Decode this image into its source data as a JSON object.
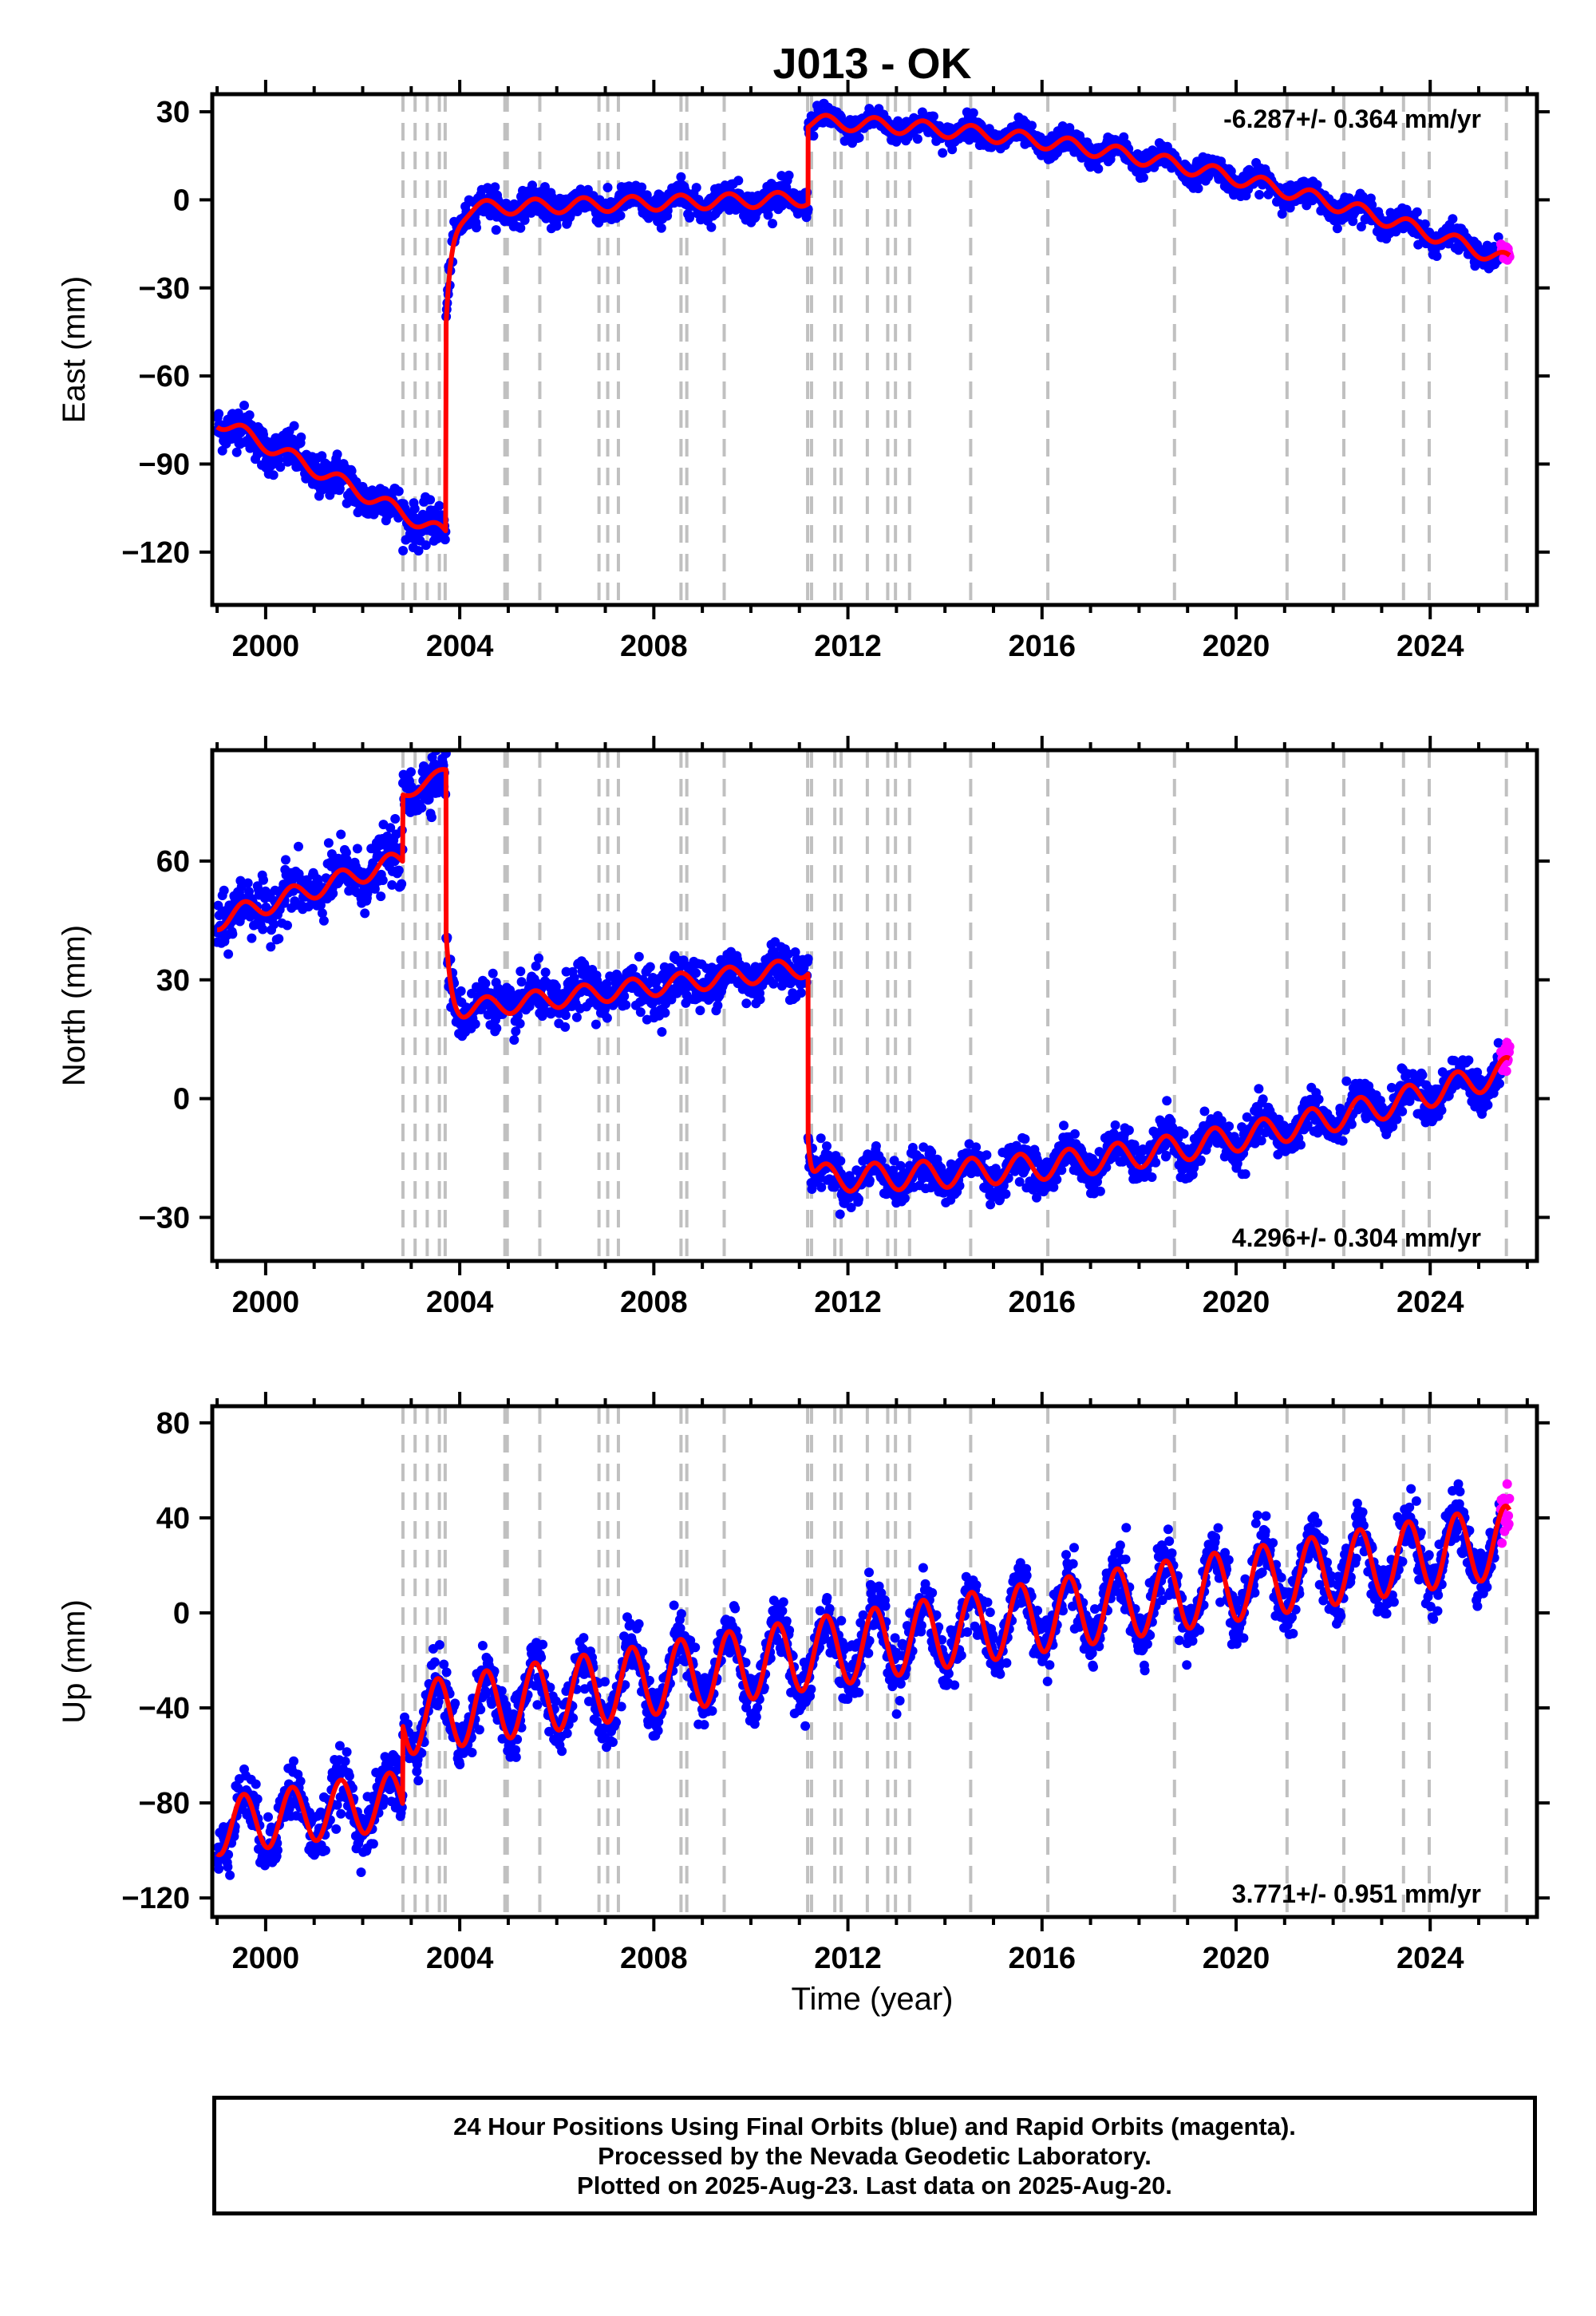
{
  "title": "J013 - OK",
  "xlabel": "Time (year)",
  "footer": {
    "line1": "24 Hour Positions Using Final Orbits (blue) and Rapid Orbits (magenta).",
    "line2": "Processed by the Nevada Geodetic Laboratory.",
    "line3": "Plotted on 2025-Aug-23. Last data on 2025-Aug-20."
  },
  "colors": {
    "final": "#0000ff",
    "rapid": "#ff00ff",
    "model": "#ff0000",
    "event_lines": "#c0c0c0",
    "frame": "#000000"
  },
  "event_years": [
    2002.83,
    2003.08,
    2003.33,
    2003.58,
    2003.7,
    2004.93,
    2004.98,
    2005.65,
    2006.87,
    2007.05,
    2007.27,
    2008.56,
    2008.68,
    2009.45,
    2011.17,
    2011.25,
    2011.73,
    2011.86,
    2012.4,
    2012.82,
    2012.98,
    2013.27,
    2014.53,
    2016.12,
    2018.73,
    2021.05,
    2022.22,
    2023.45,
    2023.98,
    2025.57
  ],
  "chart_data": [
    {
      "type": "scatter",
      "name": "east",
      "ylabel": "East (mm)",
      "rate_label": "-6.287+/- 0.364 mm/yr",
      "rate_position": "top-right",
      "xlim": [
        1998.9,
        2026.2
      ],
      "ylim": [
        -138,
        36
      ],
      "yticks": [
        -120,
        -90,
        -60,
        -30,
        0,
        30
      ],
      "xticks": [
        2000,
        2004,
        2008,
        2012,
        2016,
        2020,
        2024
      ],
      "rapid_range": [
        2025.45,
        2025.64
      ],
      "segments": [
        {
          "start": 1999.0,
          "end": 2003.72,
          "y0": -75,
          "slope": -8.3,
          "amp": 2.5,
          "noise": 3.5
        },
        {
          "start": 2003.72,
          "end": 2011.18,
          "y0": -3,
          "slope": 0.45,
          "amp": 2.5,
          "noise": 2.5,
          "transient": {
            "amp": -40,
            "tau": 0.12
          }
        },
        {
          "start": 2011.18,
          "end": 2025.64,
          "y0": 26.5,
          "slope": -0.4,
          "quad": -0.2,
          "amp": 2.5,
          "noise": 2.0
        }
      ]
    },
    {
      "type": "scatter",
      "name": "north",
      "ylabel": "North (mm)",
      "rate_label": "4.296+/- 0.304 mm/yr",
      "rate_position": "bottom-right",
      "xlim": [
        1998.9,
        2026.2
      ],
      "ylim": [
        -41,
        88
      ],
      "yticks": [
        -30,
        0,
        30,
        60
      ],
      "xticks": [
        2000,
        2004,
        2008,
        2012,
        2016,
        2020,
        2024
      ],
      "rapid_range": [
        2025.45,
        2025.64
      ],
      "segments": [
        {
          "start": 1999.0,
          "end": 2002.83,
          "y0": 45,
          "slope": 4.0,
          "amp": 2.5,
          "noise": 3.5
        },
        {
          "start": 2002.83,
          "end": 2003.72,
          "y0": 77,
          "slope": 6.0,
          "amp": 1.5,
          "noise": 3.5
        },
        {
          "start": 2003.72,
          "end": 2011.18,
          "y0": 22,
          "slope": 1.5,
          "amp": 2.5,
          "noise": 3.0,
          "transient": {
            "amp": 18,
            "tau": 0.1
          }
        },
        {
          "start": 2011.18,
          "end": 2025.64,
          "y0": -20,
          "slope": 0.0,
          "quad": 0.13,
          "amp": 3.5,
          "noise": 2.5,
          "transient": {
            "amp": 12,
            "tau": 0.06
          }
        }
      ]
    },
    {
      "type": "scatter",
      "name": "up",
      "ylabel": "Up (mm)",
      "rate_label": "3.771+/- 0.951 mm/yr",
      "rate_position": "bottom-right",
      "xlim": [
        1998.9,
        2026.2
      ],
      "ylim": [
        -128,
        87
      ],
      "yticks": [
        -120,
        -80,
        -40,
        0,
        40,
        80
      ],
      "xticks": [
        2000,
        2004,
        2008,
        2012,
        2016,
        2020,
        2024
      ],
      "rapid_range": [
        2025.45,
        2025.64
      ],
      "segments": [
        {
          "start": 1999.0,
          "end": 2002.83,
          "y0": -90,
          "slope": 3.0,
          "amp": 12,
          "noise": 6
        },
        {
          "start": 2002.83,
          "end": 2025.64,
          "y0": -45,
          "slope": 3.3,
          "amp": 15,
          "noise": 6
        }
      ]
    }
  ]
}
